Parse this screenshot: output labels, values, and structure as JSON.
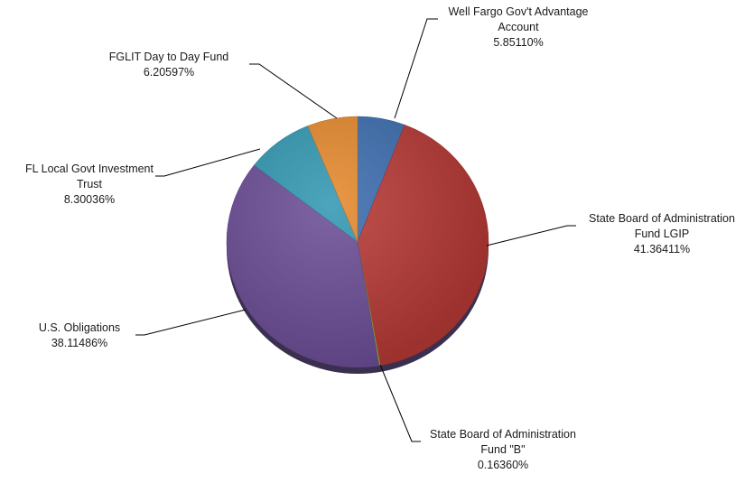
{
  "chart_data": {
    "type": "pie",
    "slices": [
      {
        "label": "Well Fargo Gov't Advantage Account",
        "lines": [
          "Well Fargo Gov't Advantage",
          "Account",
          "5.85110%"
        ],
        "value": 5.8511,
        "color": "#3e6eb0"
      },
      {
        "label": "State Board of Administration Fund LGIP",
        "lines": [
          "State Board of Administration",
          "Fund LGIP",
          "41.36411%"
        ],
        "value": 41.36411,
        "color": "#b83a36"
      },
      {
        "label": "State Board of Administration Fund \"B\"",
        "lines": [
          "State Board of Administration",
          "Fund \"B\"",
          "0.16360%"
        ],
        "value": 0.1636,
        "color": "#8fae45"
      },
      {
        "label": "U.S. Obligations",
        "lines": [
          "U.S. Obligations",
          "38.11486%"
        ],
        "value": 38.11486,
        "color": "#6d4f98"
      },
      {
        "label": "FL Local Govt Investment Trust",
        "lines": [
          "FL Local Govt Investment",
          "Trust",
          "8.30036%"
        ],
        "value": 8.30036,
        "color": "#3499b3"
      },
      {
        "label": "FGLIT Day to Day Fund",
        "lines": [
          "FGLIT Day to Day Fund",
          "6.20597%"
        ],
        "value": 6.20597,
        "color": "#e58a2e"
      }
    ]
  }
}
